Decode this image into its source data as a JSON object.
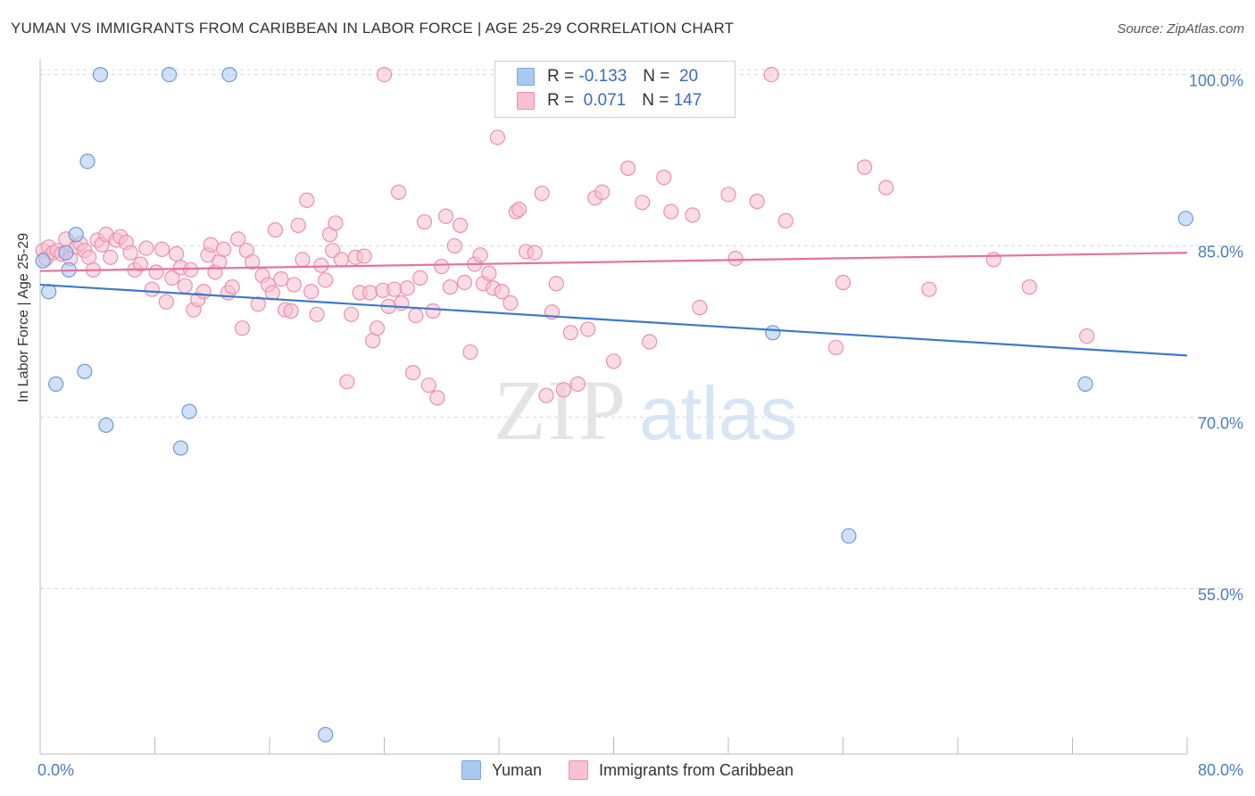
{
  "header": {
    "title": "YUMAN VS IMMIGRANTS FROM CARIBBEAN IN LABOR FORCE | AGE 25-29 CORRELATION CHART",
    "source": "Source: ZipAtlas.com"
  },
  "watermark": {
    "zip": "ZIP",
    "atlas": "atlas"
  },
  "legend": {
    "rows": [
      {
        "r_label": "R =",
        "r_value": "-0.133",
        "n_label": "N =",
        "n_value": "20",
        "color": "#a9c8f0"
      },
      {
        "r_label": "R =",
        "r_value": "0.071",
        "n_label": "N =",
        "n_value": "147",
        "color": "#f6b9cc"
      }
    ]
  },
  "bottom_legend": {
    "items": [
      "Yuman",
      "Immigrants from Caribbean"
    ]
  },
  "colors": {
    "blue_fill": "#aac8f0",
    "blue_stroke": "#6d9ad8",
    "blue_line": "#3b78d0",
    "pink_fill": "#f8c0d0",
    "pink_stroke": "#ec8fab",
    "pink_line": "#e8709a",
    "grid": "#d8d8d8",
    "tick_text": "#4a7cc0"
  },
  "chart_data": {
    "type": "scatter",
    "title": "YUMAN VS IMMIGRANTS FROM CARIBBEAN IN LABOR FORCE | AGE 25-29 CORRELATION CHART",
    "xlabel": "",
    "ylabel": "In Labor Force | Age 25-29",
    "xlim": [
      0,
      80
    ],
    "ylim": [
      40.5,
      102
    ],
    "x_tick_labels": [
      "0.0%",
      "80.0%"
    ],
    "y_ticks": [
      55,
      70,
      85,
      100
    ],
    "y_tick_labels": [
      "55.0%",
      "70.0%",
      "85.0%",
      "100.0%"
    ],
    "grid": "horizontal dashed",
    "legend_position": "top-center",
    "series": [
      {
        "name": "Yuman",
        "trend": [
          [
            0,
            81.6
          ],
          [
            80,
            75.4
          ]
        ],
        "points": [
          [
            0.2,
            83.7
          ],
          [
            0.6,
            81.0
          ],
          [
            1.1,
            72.9
          ],
          [
            1.8,
            84.4
          ],
          [
            2.0,
            82.9
          ],
          [
            2.5,
            86.0
          ],
          [
            3.1,
            74.0
          ],
          [
            3.3,
            92.4
          ],
          [
            4.2,
            100.0
          ],
          [
            4.6,
            69.3
          ],
          [
            9.0,
            100.0
          ],
          [
            9.8,
            67.3
          ],
          [
            10.4,
            70.5
          ],
          [
            13.2,
            100.0
          ],
          [
            19.9,
            42.2
          ],
          [
            38.2,
            100.0
          ],
          [
            51.1,
            77.4
          ],
          [
            56.4,
            59.6
          ],
          [
            72.9,
            72.9
          ],
          [
            79.9,
            87.4
          ]
        ]
      },
      {
        "name": "Immigrants from Caribbean",
        "trend": [
          [
            0,
            82.8
          ],
          [
            80,
            84.4
          ]
        ],
        "points": [
          [
            0.2,
            84.6
          ],
          [
            0.4,
            83.9
          ],
          [
            0.6,
            84.9
          ],
          [
            0.9,
            84.4
          ],
          [
            1.2,
            84.6
          ],
          [
            1.5,
            84.3
          ],
          [
            1.8,
            85.6
          ],
          [
            2.1,
            83.9
          ],
          [
            2.5,
            84.9
          ],
          [
            2.8,
            85.2
          ],
          [
            3.1,
            84.6
          ],
          [
            3.4,
            84.0
          ],
          [
            3.7,
            82.9
          ],
          [
            4.0,
            85.5
          ],
          [
            4.3,
            85.1
          ],
          [
            4.6,
            86.0
          ],
          [
            4.9,
            84.0
          ],
          [
            5.3,
            85.5
          ],
          [
            5.6,
            85.8
          ],
          [
            6.0,
            85.3
          ],
          [
            6.3,
            84.4
          ],
          [
            6.6,
            82.9
          ],
          [
            7.0,
            83.4
          ],
          [
            7.4,
            84.8
          ],
          [
            7.8,
            81.2
          ],
          [
            8.1,
            82.7
          ],
          [
            8.5,
            84.7
          ],
          [
            8.8,
            80.1
          ],
          [
            9.2,
            82.2
          ],
          [
            9.5,
            84.3
          ],
          [
            9.8,
            83.1
          ],
          [
            10.1,
            81.5
          ],
          [
            10.5,
            82.9
          ],
          [
            10.7,
            79.4
          ],
          [
            11.0,
            80.3
          ],
          [
            11.4,
            81.0
          ],
          [
            11.7,
            84.2
          ],
          [
            11.9,
            85.1
          ],
          [
            12.2,
            82.7
          ],
          [
            12.5,
            83.6
          ],
          [
            12.8,
            84.7
          ],
          [
            13.1,
            80.9
          ],
          [
            13.4,
            81.4
          ],
          [
            13.8,
            85.6
          ],
          [
            14.1,
            77.8
          ],
          [
            14.4,
            84.6
          ],
          [
            14.8,
            83.6
          ],
          [
            15.2,
            79.9
          ],
          [
            15.5,
            82.4
          ],
          [
            15.9,
            81.6
          ],
          [
            16.2,
            80.9
          ],
          [
            16.4,
            86.4
          ],
          [
            16.8,
            82.1
          ],
          [
            17.1,
            79.4
          ],
          [
            17.5,
            79.3
          ],
          [
            17.7,
            81.6
          ],
          [
            18.0,
            86.8
          ],
          [
            18.3,
            83.8
          ],
          [
            18.6,
            89.0
          ],
          [
            18.9,
            81.0
          ],
          [
            19.3,
            79.0
          ],
          [
            19.6,
            83.3
          ],
          [
            19.9,
            82.0
          ],
          [
            20.2,
            86.0
          ],
          [
            20.4,
            84.6
          ],
          [
            20.6,
            87.0
          ],
          [
            21.0,
            83.8
          ],
          [
            21.4,
            73.1
          ],
          [
            21.7,
            79.0
          ],
          [
            22.0,
            84.0
          ],
          [
            22.3,
            80.9
          ],
          [
            22.6,
            84.1
          ],
          [
            23.0,
            80.9
          ],
          [
            23.2,
            76.7
          ],
          [
            23.5,
            77.8
          ],
          [
            23.9,
            81.1
          ],
          [
            24.0,
            100.0
          ],
          [
            24.3,
            79.7
          ],
          [
            24.7,
            81.2
          ],
          [
            25.0,
            89.7
          ],
          [
            25.2,
            80.0
          ],
          [
            25.6,
            81.3
          ],
          [
            26.0,
            73.9
          ],
          [
            26.2,
            78.9
          ],
          [
            26.5,
            82.2
          ],
          [
            26.8,
            87.1
          ],
          [
            27.1,
            72.8
          ],
          [
            27.4,
            79.3
          ],
          [
            27.7,
            71.7
          ],
          [
            28.0,
            83.2
          ],
          [
            28.3,
            87.6
          ],
          [
            28.6,
            81.4
          ],
          [
            28.9,
            85.0
          ],
          [
            29.3,
            86.8
          ],
          [
            29.6,
            81.8
          ],
          [
            30.0,
            75.7
          ],
          [
            30.3,
            83.4
          ],
          [
            30.7,
            84.2
          ],
          [
            30.9,
            81.7
          ],
          [
            31.3,
            82.6
          ],
          [
            31.6,
            81.3
          ],
          [
            31.9,
            94.5
          ],
          [
            32.2,
            81.0
          ],
          [
            32.8,
            80.0
          ],
          [
            33.2,
            88.0
          ],
          [
            33.4,
            88.2
          ],
          [
            33.9,
            84.5
          ],
          [
            34.5,
            84.4
          ],
          [
            35.0,
            89.6
          ],
          [
            35.3,
            71.9
          ],
          [
            35.7,
            79.2
          ],
          [
            36.0,
            81.7
          ],
          [
            36.5,
            72.4
          ],
          [
            37.0,
            77.4
          ],
          [
            37.5,
            72.9
          ],
          [
            38.2,
            77.7
          ],
          [
            38.7,
            89.2
          ],
          [
            39.2,
            89.7
          ],
          [
            40.0,
            74.9
          ],
          [
            41.0,
            91.8
          ],
          [
            42.0,
            88.8
          ],
          [
            42.5,
            76.6
          ],
          [
            43.5,
            91.0
          ],
          [
            44.0,
            88.0
          ],
          [
            45.0,
            98.3
          ],
          [
            45.5,
            87.7
          ],
          [
            46.0,
            79.6
          ],
          [
            48.0,
            89.5
          ],
          [
            48.5,
            83.9
          ],
          [
            50.0,
            88.9
          ],
          [
            51.0,
            100.0
          ],
          [
            52.0,
            87.2
          ],
          [
            55.5,
            76.1
          ],
          [
            56.0,
            81.8
          ],
          [
            57.5,
            91.9
          ],
          [
            59.0,
            90.1
          ],
          [
            62.0,
            81.2
          ],
          [
            66.5,
            83.8
          ],
          [
            69.0,
            81.4
          ],
          [
            73.0,
            77.1
          ]
        ]
      }
    ]
  }
}
